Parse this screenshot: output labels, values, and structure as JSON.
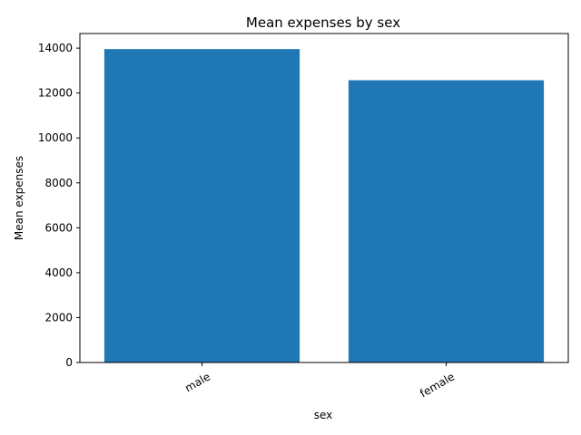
{
  "chart_data": {
    "type": "bar",
    "title": "Mean expenses by sex",
    "xlabel": "sex",
    "ylabel": "Mean expenses",
    "categories": [
      "male",
      "female"
    ],
    "values": [
      13957,
      12570
    ],
    "ylim": [
      0,
      14650
    ],
    "yticks": [
      0,
      2000,
      4000,
      6000,
      8000,
      10000,
      12000,
      14000
    ],
    "grid": false,
    "legend": "none",
    "bar_color": "#1f77b4"
  }
}
